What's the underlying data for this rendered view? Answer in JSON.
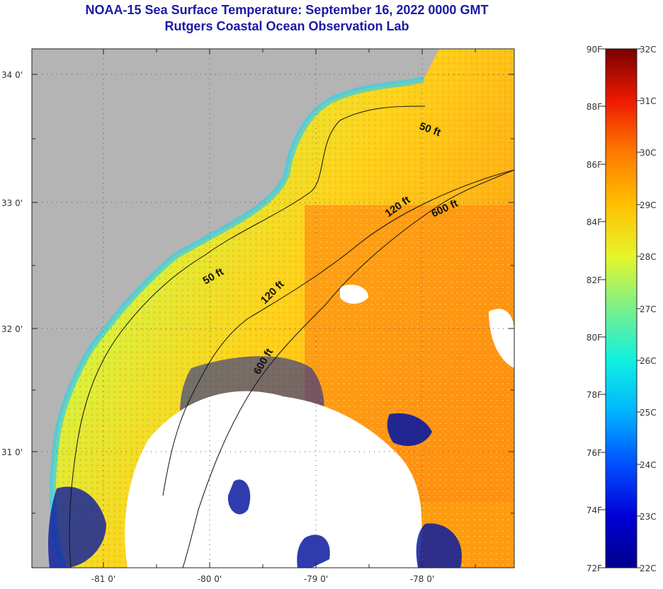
{
  "title": "NOAA-15 Sea Surface Temperature:  September 16, 2022 0000 GMT",
  "subtitle": "Rutgers Coastal Ocean Observation Lab",
  "axes": {
    "lat_labels": [
      "34 0'",
      "33 0'",
      "32 0'",
      "31 0'"
    ],
    "lon_labels": [
      "-81 0'",
      "-80 0'",
      "-79 0'",
      "-78 0'"
    ]
  },
  "contours": {
    "labels": [
      "50 ft",
      "50 ft",
      "120 ft",
      "120 ft",
      "600 ft",
      "600 ft"
    ]
  },
  "colorbar": {
    "fahrenheit": [
      "90F",
      "88F",
      "86F",
      "84F",
      "82F",
      "80F",
      "78F",
      "76F",
      "74F",
      "72F"
    ],
    "celsius": [
      "32C",
      "31C",
      "30C",
      "29C",
      "28C",
      "27C",
      "26C",
      "25C",
      "24C",
      "23C",
      "22C"
    ]
  },
  "colors": {
    "land": "#b4b4b4",
    "cloud": "#ffffff",
    "title": "#1a1aa8"
  }
}
